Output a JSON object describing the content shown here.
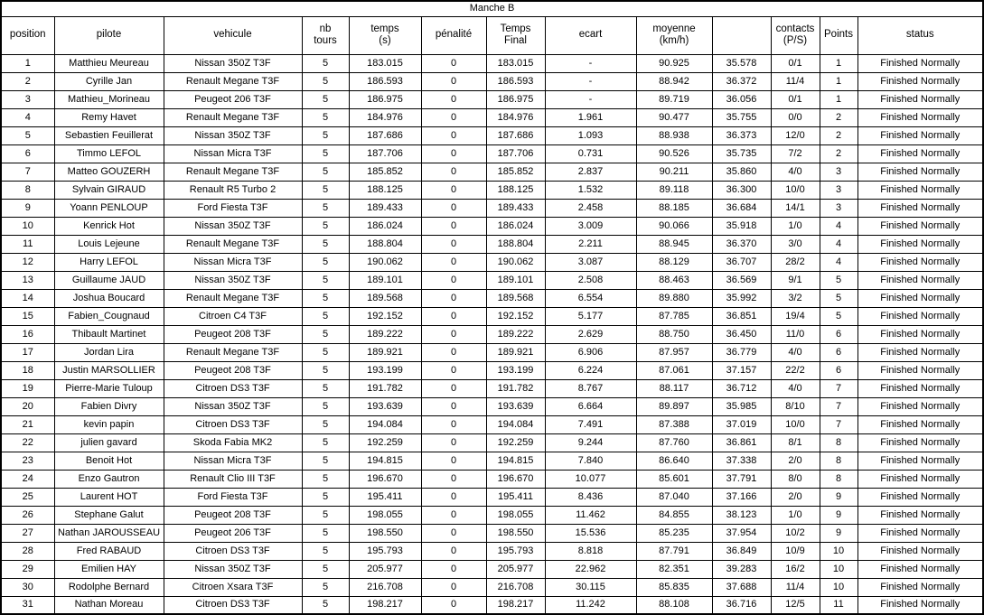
{
  "title": "Manche B",
  "colors": {
    "border": "#000000",
    "background": "#ffffff",
    "text": "#000000",
    "muted_temps_text": "#c4c4c4"
  },
  "table": {
    "columns": [
      {
        "key": "position",
        "label": "position"
      },
      {
        "key": "pilote",
        "label": "pilote"
      },
      {
        "key": "vehicule",
        "label": "vehicule"
      },
      {
        "key": "nb_tours",
        "label": "nb\ntours"
      },
      {
        "key": "temps",
        "label": "temps\n(s)"
      },
      {
        "key": "penalite",
        "label": "pénalité"
      },
      {
        "key": "temps_final",
        "label": "Temps\nFinal"
      },
      {
        "key": "ecart",
        "label": "ecart"
      },
      {
        "key": "moyenne",
        "label": "moyenne\n(km/h)"
      },
      {
        "key": "col10",
        "label": ""
      },
      {
        "key": "contacts",
        "label": "contacts\n(P/S)"
      },
      {
        "key": "points",
        "label": "Points"
      },
      {
        "key": "status",
        "label": "status"
      }
    ],
    "rows": [
      [
        "1",
        "Matthieu Meureau",
        "Nissan 350Z T3F",
        "5",
        "183.015",
        "0",
        "183.015",
        "-",
        "90.925",
        "35.578",
        "0/1",
        "1",
        "Finished Normally"
      ],
      [
        "2",
        "Cyrille Jan",
        "Renault Megane T3F",
        "5",
        "186.593",
        "0",
        "186.593",
        "-",
        "88.942",
        "36.372",
        "11/4",
        "1",
        "Finished Normally"
      ],
      [
        "3",
        "Mathieu_Morineau",
        "Peugeot 206 T3F",
        "5",
        "186.975",
        "0",
        "186.975",
        "-",
        "89.719",
        "36.056",
        "0/1",
        "1",
        "Finished Normally"
      ],
      [
        "4",
        "Remy Havet",
        "Renault Megane T3F",
        "5",
        "184.976",
        "0",
        "184.976",
        "1.961",
        "90.477",
        "35.755",
        "0/0",
        "2",
        "Finished Normally"
      ],
      [
        "5",
        "Sebastien Feuillerat",
        "Nissan 350Z T3F",
        "5",
        "187.686",
        "0",
        "187.686",
        "1.093",
        "88.938",
        "36.373",
        "12/0",
        "2",
        "Finished Normally"
      ],
      [
        "6",
        "Timmo LEFOL",
        "Nissan Micra T3F",
        "5",
        "187.706",
        "0",
        "187.706",
        "0.731",
        "90.526",
        "35.735",
        "7/2",
        "2",
        "Finished Normally"
      ],
      [
        "7",
        "Matteo GOUZERH",
        "Renault Megane T3F",
        "5",
        "185.852",
        "0",
        "185.852",
        "2.837",
        "90.211",
        "35.860",
        "4/0",
        "3",
        "Finished Normally"
      ],
      [
        "8",
        "Sylvain GIRAUD",
        "Renault R5 Turbo 2",
        "5",
        "188.125",
        "0",
        "188.125",
        "1.532",
        "89.118",
        "36.300",
        "10/0",
        "3",
        "Finished Normally"
      ],
      [
        "9",
        "Yoann PENLOUP",
        "Ford Fiesta T3F",
        "5",
        "189.433",
        "0",
        "189.433",
        "2.458",
        "88.185",
        "36.684",
        "14/1",
        "3",
        "Finished Normally"
      ],
      [
        "10",
        "Kenrick Hot",
        "Nissan 350Z T3F",
        "5",
        "186.024",
        "0",
        "186.024",
        "3.009",
        "90.066",
        "35.918",
        "1/0",
        "4",
        "Finished Normally"
      ],
      [
        "11",
        "Louis Lejeune",
        "Renault Megane T3F",
        "5",
        "188.804",
        "0",
        "188.804",
        "2.211",
        "88.945",
        "36.370",
        "3/0",
        "4",
        "Finished Normally"
      ],
      [
        "12",
        "Harry LEFOL",
        "Nissan Micra T3F",
        "5",
        "190.062",
        "0",
        "190.062",
        "3.087",
        "88.129",
        "36.707",
        "28/2",
        "4",
        "Finished Normally"
      ],
      [
        "13",
        "Guillaume JAUD",
        "Nissan 350Z T3F",
        "5",
        "189.101",
        "0",
        "189.101",
        "2.508",
        "88.463",
        "36.569",
        "9/1",
        "5",
        "Finished Normally"
      ],
      [
        "14",
        "Joshua Boucard",
        "Renault Megane T3F",
        "5",
        "189.568",
        "0",
        "189.568",
        "6.554",
        "89.880",
        "35.992",
        "3/2",
        "5",
        "Finished Normally"
      ],
      [
        "15",
        "Fabien_Cougnaud",
        "Citroen C4 T3F",
        "5",
        "192.152",
        "0",
        "192.152",
        "5.177",
        "87.785",
        "36.851",
        "19/4",
        "5",
        "Finished Normally"
      ],
      [
        "16",
        "Thibault Martinet",
        "Peugeot 208 T3F",
        "5",
        "189.222",
        "0",
        "189.222",
        "2.629",
        "88.750",
        "36.450",
        "11/0",
        "6",
        "Finished Normally"
      ],
      [
        "17",
        "Jordan Lira",
        "Renault Megane T3F",
        "5",
        "189.921",
        "0",
        "189.921",
        "6.906",
        "87.957",
        "36.779",
        "4/0",
        "6",
        "Finished Normally"
      ],
      [
        "18",
        "Justin MARSOLLIER",
        "Peugeot 208 T3F",
        "5",
        "193.199",
        "0",
        "193.199",
        "6.224",
        "87.061",
        "37.157",
        "22/2",
        "6",
        "Finished Normally"
      ],
      [
        "19",
        "Pierre-Marie Tuloup",
        "Citroen DS3 T3F",
        "5",
        "191.782",
        "0",
        "191.782",
        "8.767",
        "88.117",
        "36.712",
        "4/0",
        "7",
        "Finished Normally"
      ],
      [
        "20",
        "Fabien Divry",
        "Nissan 350Z T3F",
        "5",
        "193.639",
        "0",
        "193.639",
        "6.664",
        "89.897",
        "35.985",
        "8/10",
        "7",
        "Finished Normally"
      ],
      [
        "21",
        "kevin papin",
        "Citroen DS3 T3F",
        "5",
        "194.084",
        "0",
        "194.084",
        "7.491",
        "87.388",
        "37.019",
        "10/0",
        "7",
        "Finished Normally"
      ],
      [
        "22",
        "julien gavard",
        "Skoda Fabia MK2",
        "5",
        "192.259",
        "0",
        "192.259",
        "9.244",
        "87.760",
        "36.861",
        "8/1",
        "8",
        "Finished Normally"
      ],
      [
        "23",
        "Benoit Hot",
        "Nissan Micra T3F",
        "5",
        "194.815",
        "0",
        "194.815",
        "7.840",
        "86.640",
        "37.338",
        "2/0",
        "8",
        "Finished Normally"
      ],
      [
        "24",
        "Enzo Gautron",
        "Renault Clio III T3F",
        "5",
        "196.670",
        "0",
        "196.670",
        "10.077",
        "85.601",
        "37.791",
        "8/0",
        "8",
        "Finished Normally"
      ],
      [
        "25",
        "Laurent HOT",
        "Ford Fiesta T3F",
        "5",
        "195.411",
        "0",
        "195.411",
        "8.436",
        "87.040",
        "37.166",
        "2/0",
        "9",
        "Finished Normally"
      ],
      [
        "26",
        "Stephane Galut",
        "Peugeot 208 T3F",
        "5",
        "198.055",
        "0",
        "198.055",
        "11.462",
        "84.855",
        "38.123",
        "1/0",
        "9",
        "Finished Normally"
      ],
      [
        "27",
        "Nathan JAROUSSEAU",
        "Peugeot 206 T3F",
        "5",
        "198.550",
        "0",
        "198.550",
        "15.536",
        "85.235",
        "37.954",
        "10/2",
        "9",
        "Finished Normally"
      ],
      [
        "28",
        "Fred RABAUD",
        "Citroen DS3 T3F",
        "5",
        "195.793",
        "0",
        "195.793",
        "8.818",
        "87.791",
        "36.849",
        "10/9",
        "10",
        "Finished Normally"
      ],
      [
        "29",
        "Emilien HAY",
        "Nissan 350Z T3F",
        "5",
        "205.977",
        "0",
        "205.977",
        "22.962",
        "82.351",
        "39.283",
        "16/2",
        "10",
        "Finished Normally"
      ],
      [
        "30",
        "Rodolphe Bernard",
        "Citroen Xsara T3F",
        "5",
        "216.708",
        "0",
        "216.708",
        "30.115",
        "85.835",
        "37.688",
        "11/4",
        "10",
        "Finished Normally"
      ],
      [
        "31",
        "Nathan Moreau",
        "Citroen DS3 T3F",
        "5",
        "198.217",
        "0",
        "198.217",
        "11.242",
        "88.108",
        "36.716",
        "12/5",
        "11",
        "Finished Normally"
      ]
    ]
  }
}
